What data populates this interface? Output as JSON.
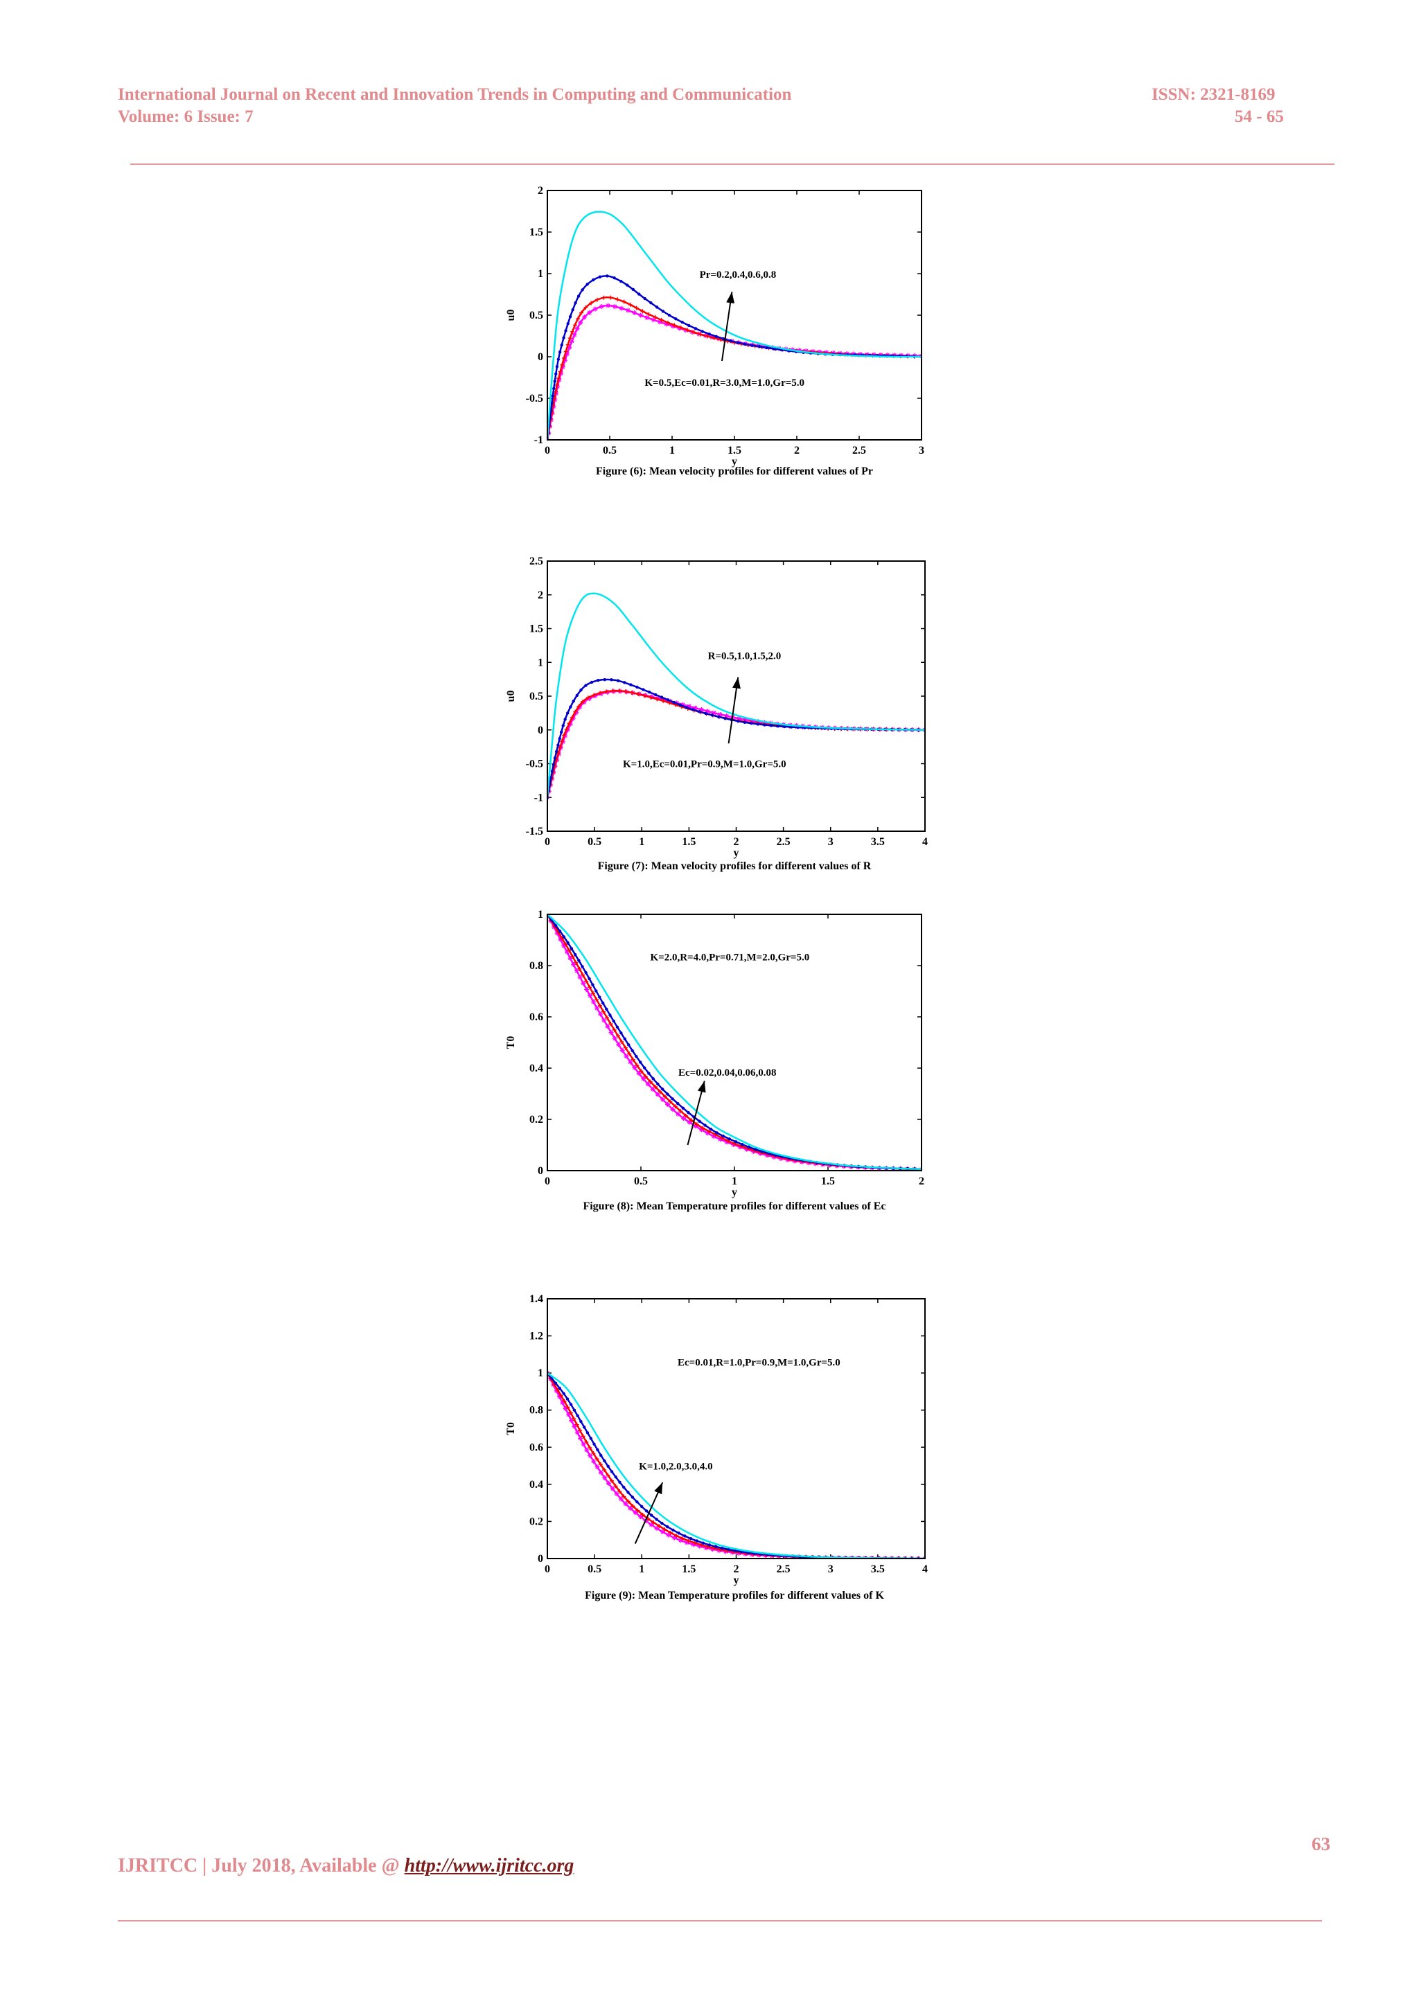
{
  "header": {
    "journal": "International Journal on Recent and Innovation Trends in Computing and Communication",
    "volume": "Volume: 6 Issue: 7",
    "issn": "ISSN: 2321-8169",
    "pages": "54 - 65"
  },
  "figures": [
    {
      "caption": "Figure (6): Mean velocity profiles for different values of Pr",
      "param_label": "Pr=0.2,0.4,0.6,0.8",
      "fixed_label": "K=0.5,Ec=0.01,R=3.0,M=1.0,Gr=5.0"
    },
    {
      "caption": "Figure (7): Mean velocity profiles for different values of R",
      "param_label": "R=0.5,1.0,1.5,2.0",
      "fixed_label": "K=1.0,Ec=0.01,Pr=0.9,M=1.0,Gr=5.0"
    },
    {
      "caption": "Figure (8): Mean Temperature profiles for different values of Ec",
      "param_label": "Ec=0.02,0.04,0.06,0.08",
      "fixed_label": "K=2.0,R=4.0,Pr=0.71,M=2.0,Gr=5.0"
    },
    {
      "caption": "Figure (9): Mean Temperature profiles for different values of K",
      "param_label": "K=1.0,2.0,3.0,4.0",
      "fixed_label": "Ec=0.01,R=1.0,Pr=0.9,M=1.0,Gr=5.0"
    }
  ],
  "chart_data": [
    {
      "type": "line",
      "xlabel": "y",
      "ylabel": "u0",
      "xlim": [
        0,
        3
      ],
      "ylim": [
        -1,
        2
      ],
      "xticks": [
        "0",
        "0.5",
        "1",
        "1.5",
        "2",
        "2.5",
        "3"
      ],
      "yticks": [
        "-1",
        "-0.5",
        "0",
        "0.5",
        "1",
        "1.5",
        "2"
      ],
      "xtick_values": [
        0,
        0.5,
        1,
        1.5,
        2,
        2.5,
        3
      ],
      "ytick_values": [
        -1,
        -0.5,
        0,
        0.5,
        1,
        1.5,
        2
      ],
      "x": [
        0,
        0.05,
        0.1,
        0.2,
        0.3,
        0.45,
        0.6,
        0.8,
        1.0,
        1.25,
        1.5,
        1.75,
        2.0,
        2.25,
        2.5,
        2.75,
        3.0
      ],
      "series": [
        {
          "color": "#ff00ff",
          "marker": "star",
          "values": [
            -1,
            -0.6,
            -0.25,
            0.2,
            0.48,
            0.61,
            0.58,
            0.47,
            0.37,
            0.26,
            0.18,
            0.12,
            0.08,
            0.05,
            0.03,
            0.02,
            0.01
          ]
        },
        {
          "color": "#ff0000",
          "marker": "plus",
          "values": [
            -1,
            -0.55,
            -0.2,
            0.3,
            0.58,
            0.71,
            0.67,
            0.52,
            0.39,
            0.26,
            0.17,
            0.11,
            0.07,
            0.04,
            0.02,
            0.01,
            0.0
          ]
        },
        {
          "color": "#0000cc",
          "marker": "dot",
          "values": [
            -1,
            -0.4,
            0.05,
            0.55,
            0.84,
            0.97,
            0.9,
            0.68,
            0.48,
            0.3,
            0.18,
            0.11,
            0.06,
            0.03,
            0.02,
            0.01,
            0.0
          ]
        },
        {
          "color": "#00e5ee",
          "marker": "none",
          "values": [
            -1,
            0.0,
            0.7,
            1.4,
            1.68,
            1.74,
            1.6,
            1.22,
            0.84,
            0.48,
            0.26,
            0.14,
            0.07,
            0.03,
            0.01,
            0.0,
            0.0
          ]
        }
      ],
      "arrow": {
        "from": [
          1.4,
          -0.05
        ],
        "to": [
          1.48,
          0.78
        ]
      },
      "param_label_pos": [
        1.22,
        0.95
      ],
      "fixed_label_pos": [
        0.78,
        -0.35
      ]
    },
    {
      "type": "line",
      "xlabel": "y",
      "ylabel": "u0",
      "xlim": [
        0,
        4
      ],
      "ylim": [
        -1.5,
        2.5
      ],
      "xticks": [
        "0",
        "0.5",
        "1",
        "1.5",
        "2",
        "2.5",
        "3",
        "3.5",
        "4"
      ],
      "yticks": [
        "-1.5",
        "-1",
        "-0.5",
        "0",
        "0.5",
        "1",
        "1.5",
        "2",
        "2.5"
      ],
      "xtick_values": [
        0,
        0.5,
        1,
        1.5,
        2,
        2.5,
        3,
        3.5,
        4
      ],
      "ytick_values": [
        -1.5,
        -1,
        -0.5,
        0,
        0.5,
        1,
        1.5,
        2,
        2.5
      ],
      "x": [
        0,
        0.05,
        0.1,
        0.2,
        0.35,
        0.5,
        0.7,
        0.9,
        1.2,
        1.5,
        1.8,
        2.1,
        2.5,
        3.0,
        3.5,
        4.0
      ],
      "series": [
        {
          "color": "#ff00ff",
          "marker": "star",
          "values": [
            -1,
            -0.72,
            -0.45,
            -0.05,
            0.35,
            0.5,
            0.57,
            0.55,
            0.46,
            0.35,
            0.24,
            0.15,
            0.08,
            0.03,
            0.01,
            0.0
          ]
        },
        {
          "color": "#ff0000",
          "marker": "plus",
          "values": [
            -1,
            -0.7,
            -0.42,
            0.0,
            0.38,
            0.52,
            0.58,
            0.55,
            0.44,
            0.31,
            0.2,
            0.12,
            0.06,
            0.02,
            0.01,
            0.0
          ]
        },
        {
          "color": "#0000cc",
          "marker": "dot",
          "values": [
            -1,
            -0.62,
            -0.3,
            0.2,
            0.58,
            0.72,
            0.74,
            0.66,
            0.49,
            0.32,
            0.2,
            0.11,
            0.05,
            0.02,
            0.01,
            0.0
          ]
        },
        {
          "color": "#00e5ee",
          "marker": "none",
          "values": [
            -1,
            -0.2,
            0.5,
            1.35,
            1.9,
            2.02,
            1.88,
            1.55,
            1.02,
            0.6,
            0.33,
            0.18,
            0.08,
            0.03,
            0.01,
            0.0
          ]
        }
      ],
      "arrow": {
        "from": [
          1.92,
          -0.2
        ],
        "to": [
          2.02,
          0.78
        ]
      },
      "param_label_pos": [
        1.7,
        1.05
      ],
      "fixed_label_pos": [
        0.8,
        -0.55
      ]
    },
    {
      "type": "line",
      "xlabel": "y",
      "ylabel": "T0",
      "xlim": [
        0,
        2
      ],
      "ylim": [
        0,
        1
      ],
      "xticks": [
        "0",
        "0.5",
        "1",
        "1.5",
        "2"
      ],
      "yticks": [
        "0",
        "0.2",
        "0.4",
        "0.6",
        "0.8",
        "1"
      ],
      "xtick_values": [
        0,
        0.5,
        1,
        1.5,
        2
      ],
      "ytick_values": [
        0,
        0.2,
        0.4,
        0.6,
        0.8,
        1
      ],
      "x": [
        0,
        0.1,
        0.2,
        0.3,
        0.4,
        0.5,
        0.6,
        0.7,
        0.8,
        0.9,
        1.0,
        1.1,
        1.2,
        1.3,
        1.4,
        1.5,
        1.6,
        1.7,
        1.8,
        1.9,
        2.0
      ],
      "series": [
        {
          "color": "#ff00ff",
          "marker": "star",
          "values": [
            1.0,
            0.86,
            0.72,
            0.59,
            0.47,
            0.37,
            0.29,
            0.22,
            0.17,
            0.13,
            0.1,
            0.075,
            0.055,
            0.04,
            0.03,
            0.022,
            0.016,
            0.012,
            0.009,
            0.007,
            0.005
          ]
        },
        {
          "color": "#ff0000",
          "marker": "plus",
          "values": [
            1.0,
            0.88,
            0.75,
            0.62,
            0.5,
            0.39,
            0.31,
            0.24,
            0.18,
            0.14,
            0.105,
            0.08,
            0.06,
            0.044,
            0.033,
            0.024,
            0.018,
            0.013,
            0.01,
            0.007,
            0.005
          ]
        },
        {
          "color": "#0000cc",
          "marker": "dot",
          "values": [
            1.0,
            0.9,
            0.78,
            0.65,
            0.53,
            0.42,
            0.33,
            0.26,
            0.2,
            0.15,
            0.115,
            0.086,
            0.064,
            0.048,
            0.036,
            0.026,
            0.019,
            0.014,
            0.01,
            0.008,
            0.006
          ]
        },
        {
          "color": "#00e5ee",
          "marker": "none",
          "values": [
            1.0,
            0.93,
            0.83,
            0.71,
            0.59,
            0.48,
            0.38,
            0.3,
            0.23,
            0.17,
            0.13,
            0.095,
            0.07,
            0.052,
            0.038,
            0.028,
            0.02,
            0.015,
            0.011,
            0.008,
            0.006
          ]
        }
      ],
      "arrow": {
        "from": [
          0.75,
          0.1
        ],
        "to": [
          0.84,
          0.35
        ]
      },
      "param_label_pos": [
        0.7,
        0.37
      ],
      "fixed_label_pos": [
        0.55,
        0.82
      ]
    },
    {
      "type": "line",
      "xlabel": "y",
      "ylabel": "T0",
      "xlim": [
        0,
        4
      ],
      "ylim": [
        0,
        1.4
      ],
      "xticks": [
        "0",
        "0.5",
        "1",
        "1.5",
        "2",
        "2.5",
        "3",
        "3.5",
        "4"
      ],
      "yticks": [
        "0",
        "0.2",
        "0.4",
        "0.6",
        "0.8",
        "1",
        "1.2",
        "1.4"
      ],
      "xtick_values": [
        0,
        0.5,
        1,
        1.5,
        2,
        2.5,
        3,
        3.5,
        4
      ],
      "ytick_values": [
        0,
        0.2,
        0.4,
        0.6,
        0.8,
        1,
        1.2,
        1.4
      ],
      "x": [
        0,
        0.2,
        0.4,
        0.6,
        0.8,
        1.0,
        1.2,
        1.4,
        1.6,
        1.8,
        2.0,
        2.2,
        2.5,
        2.8,
        3.2,
        3.6,
        4.0
      ],
      "series": [
        {
          "color": "#ff00ff",
          "marker": "star",
          "values": [
            1.0,
            0.8,
            0.6,
            0.44,
            0.31,
            0.22,
            0.15,
            0.1,
            0.068,
            0.045,
            0.03,
            0.02,
            0.011,
            0.006,
            0.003,
            0.001,
            0.0
          ]
        },
        {
          "color": "#ff0000",
          "marker": "plus",
          "values": [
            1.0,
            0.83,
            0.64,
            0.48,
            0.34,
            0.24,
            0.17,
            0.115,
            0.078,
            0.052,
            0.035,
            0.023,
            0.013,
            0.007,
            0.003,
            0.001,
            0.0
          ]
        },
        {
          "color": "#0000cc",
          "marker": "dot",
          "values": [
            1.0,
            0.87,
            0.7,
            0.53,
            0.39,
            0.28,
            0.195,
            0.135,
            0.092,
            0.062,
            0.041,
            0.027,
            0.015,
            0.008,
            0.004,
            0.002,
            0.0
          ]
        },
        {
          "color": "#00e5ee",
          "marker": "none",
          "values": [
            1.0,
            0.92,
            0.77,
            0.6,
            0.45,
            0.33,
            0.235,
            0.165,
            0.113,
            0.076,
            0.051,
            0.034,
            0.019,
            0.01,
            0.004,
            0.002,
            0.0
          ]
        }
      ],
      "arrow": {
        "from": [
          0.93,
          0.08
        ],
        "to": [
          1.22,
          0.41
        ]
      },
      "param_label_pos": [
        0.97,
        0.48
      ],
      "fixed_label_pos": [
        1.38,
        1.04
      ]
    }
  ],
  "footer": {
    "text": "IJRITCC | July 2018, Available @ ",
    "link": "http://www.ijritcc.org",
    "page_number": "63"
  }
}
